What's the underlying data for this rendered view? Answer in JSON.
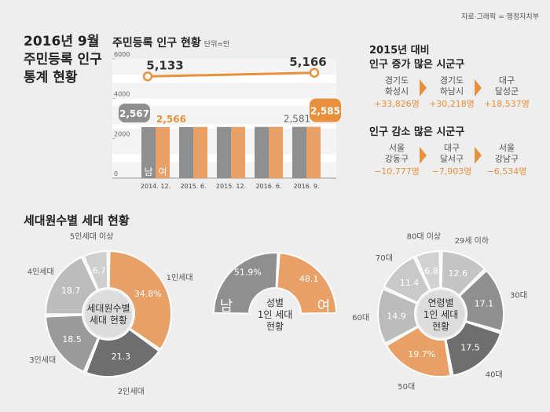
{
  "source": "자료·그래픽 = 행정자치부",
  "main_title": [
    "2016년 9월",
    "주민등록 인구",
    "통계 현황"
  ],
  "bar_section": {
    "title": "주민등록 인구 현황",
    "unit": "단위=만",
    "male_label": "남",
    "female_label": "여"
  },
  "increase": {
    "title": [
      "2015년 대비",
      "인구 증가 많은 시군구"
    ],
    "items": [
      {
        "city": [
          "경기도",
          "화성시"
        ],
        "delta": "+33,826명"
      },
      {
        "city": [
          "경기도",
          "하남시"
        ],
        "delta": "+30,218명"
      },
      {
        "city": [
          "대구",
          "달성군"
        ],
        "delta": "+18,537명"
      }
    ]
  },
  "decrease": {
    "title": [
      "인구 감소 많은 시군구"
    ],
    "items": [
      {
        "city": [
          "서울",
          "강동구"
        ],
        "delta": "−10,777명"
      },
      {
        "city": [
          "대구",
          "달서구"
        ],
        "delta": "−7,903명"
      },
      {
        "city": [
          "서울",
          "강남구"
        ],
        "delta": "−6,534명"
      }
    ]
  },
  "household_title": "세대원수별 세대 현황",
  "colors": {
    "gray": "#8f8f8f",
    "orange": "#e8a066",
    "accent": "#e8913d",
    "dark": "#6e6e6e",
    "light": "#c4c4c4",
    "lighter": "#d4d4d4"
  },
  "chart_data": [
    {
      "type": "bar",
      "categories": [
        "2014. 12.",
        "2015. 6.",
        "2015. 12.",
        "2016. 6.",
        "2016. 9."
      ],
      "series": [
        {
          "name": "남",
          "values": [
            2567,
            2570,
            2574,
            2578,
            2581
          ]
        },
        {
          "name": "여",
          "values": [
            2566,
            2572,
            2576,
            2580,
            2585
          ]
        }
      ],
      "total_line": {
        "values": [
          5133,
          5142,
          5150,
          5158,
          5166
        ],
        "labels": {
          "0": "5,133",
          "4": "5,166"
        }
      },
      "data_labels": {
        "first_male": "2,567",
        "first_female": "2,566",
        "last_male": "2,581",
        "last_female": "2,585"
      },
      "yticks": [
        0,
        2000,
        4000,
        6000
      ],
      "ylim": [
        0,
        6000
      ],
      "title": "주민등록 인구 현황",
      "ylabel": "단위=만"
    },
    {
      "type": "pie",
      "title": "세대원수별 세대 현황",
      "center_label": [
        "세대원수별",
        "세대 현황"
      ],
      "slices": [
        {
          "label": "1인세대",
          "value": 34.8,
          "text": "34.8%",
          "color": "#e8a066"
        },
        {
          "label": "2인세대",
          "value": 21.3,
          "text": "21.3",
          "color": "#6e6e6e"
        },
        {
          "label": "3인세대",
          "value": 18.5,
          "text": "18.5",
          "color": "#9a9a9a"
        },
        {
          "label": "4인세대",
          "value": 18.7,
          "text": "18.7",
          "color": "#bcbcbc"
        },
        {
          "label": "5인세대 이상",
          "value": 6.7,
          "text": "6.7",
          "color": "#cfcfcf"
        }
      ]
    },
    {
      "type": "pie",
      "title": "성별 1인 세대 현황",
      "center_label": [
        "성별",
        "1인 세대",
        "현황"
      ],
      "slices": [
        {
          "label": "남",
          "value": 51.9,
          "text": "51.9%",
          "color": "#8f8f8f"
        },
        {
          "label": "여",
          "value": 48.1,
          "text": "48.1",
          "color": "#e8a066"
        }
      ]
    },
    {
      "type": "pie",
      "title": "연령별 1인 세대 현황",
      "center_label": [
        "연령별",
        "1인 세대",
        "현황"
      ],
      "slices": [
        {
          "label": "29세 이하",
          "value": 12.6,
          "text": "12.6",
          "color": "#c4c4c4"
        },
        {
          "label": "30대",
          "value": 17.1,
          "text": "17.1",
          "color": "#8f8f8f"
        },
        {
          "label": "40대",
          "value": 17.5,
          "text": "17.5",
          "color": "#6e6e6e"
        },
        {
          "label": "50대",
          "value": 19.7,
          "text": "19.7%",
          "color": "#e8a066"
        },
        {
          "label": "60대",
          "value": 14.9,
          "text": "14.9",
          "color": "#bcbcbc"
        },
        {
          "label": "70대",
          "value": 11.4,
          "text": "11.4",
          "color": "#c9c9c9"
        },
        {
          "label": "80대 이상",
          "value": 6.8,
          "text": "6.8",
          "color": "#d2d2d2"
        }
      ]
    }
  ]
}
